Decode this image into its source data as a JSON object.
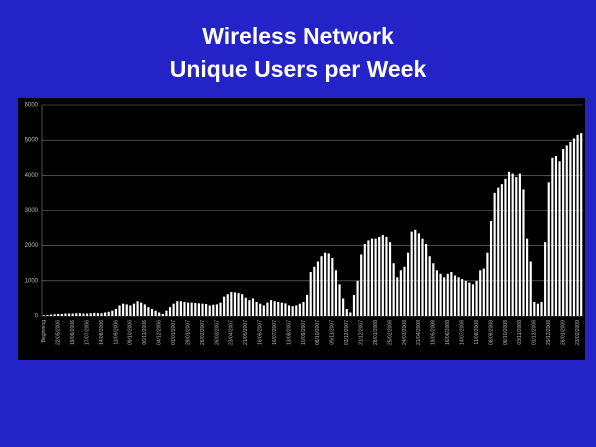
{
  "chart_data": {
    "type": "bar",
    "title": "Wireless Network",
    "subtitle": "Unique Users per Week",
    "color": "#ffffff",
    "ylim": [
      0,
      6000
    ],
    "yticks": [
      0,
      1000,
      2000,
      3000,
      4000,
      5000,
      6000
    ],
    "grid": true,
    "categories": [
      "Beginning",
      null,
      null,
      null,
      "22/05/2006",
      null,
      null,
      null,
      "19/06/2006",
      null,
      null,
      null,
      "17/07/2006",
      null,
      null,
      null,
      "14/08/2006",
      null,
      null,
      null,
      "11/09/2006",
      null,
      null,
      null,
      "09/10/2006",
      null,
      null,
      null,
      "06/11/2006",
      null,
      null,
      null,
      "04/12/2006",
      null,
      null,
      null,
      "01/01/2007",
      null,
      null,
      null,
      "29/01/2007",
      null,
      null,
      null,
      "26/02/2007",
      null,
      null,
      null,
      "26/03/2007",
      null,
      null,
      null,
      "23/04/2007",
      null,
      null,
      null,
      "21/05/2007",
      null,
      null,
      null,
      "18/06/2007",
      null,
      null,
      null,
      "16/07/2007",
      null,
      null,
      null,
      "13/08/2007",
      null,
      null,
      null,
      "10/09/2007",
      null,
      null,
      null,
      "08/10/2007",
      null,
      null,
      null,
      "05/11/2007",
      null,
      null,
      null,
      "03/12/2007",
      null,
      null,
      null,
      "31/12/2007",
      null,
      null,
      null,
      "28/01/2008",
      null,
      null,
      null,
      "25/02/2008",
      null,
      null,
      null,
      "24/03/2008",
      null,
      null,
      null,
      "21/04/2008",
      null,
      null,
      null,
      "19/05/2008",
      null,
      null,
      null,
      "16/06/2008",
      null,
      null,
      null,
      "14/07/2008",
      null,
      null,
      null,
      "11/08/2008",
      null,
      null,
      null,
      "08/09/2008",
      null,
      null,
      null,
      "06/10/2008",
      null,
      null,
      null,
      "03/11/2008",
      null,
      null,
      null,
      "01/12/2008",
      null,
      null,
      null,
      "29/12/2008",
      null,
      null,
      null,
      "26/01/2009",
      null,
      null,
      null,
      "23/02/2009",
      null
    ],
    "values": [
      20,
      30,
      40,
      50,
      60,
      60,
      70,
      70,
      70,
      80,
      80,
      70,
      70,
      80,
      90,
      80,
      80,
      100,
      120,
      150,
      200,
      300,
      350,
      330,
      300,
      350,
      420,
      380,
      330,
      250,
      200,
      150,
      100,
      60,
      150,
      250,
      350,
      420,
      420,
      400,
      380,
      380,
      370,
      360,
      350,
      340,
      300,
      320,
      330,
      380,
      550,
      620,
      680,
      670,
      650,
      620,
      520,
      450,
      500,
      400,
      350,
      300,
      380,
      450,
      420,
      400,
      380,
      360,
      300,
      280,
      300,
      350,
      400,
      600,
      1250,
      1400,
      1550,
      1700,
      1800,
      1780,
      1650,
      1300,
      900,
      500,
      200,
      100,
      600,
      1000,
      1750,
      2050,
      2150,
      2200,
      2200,
      2250,
      2300,
      2250,
      2100,
      1500,
      1100,
      1300,
      1400,
      1800,
      2400,
      2450,
      2350,
      2200,
      2050,
      1700,
      1500,
      1300,
      1200,
      1100,
      1200,
      1250,
      1150,
      1100,
      1050,
      1000,
      950,
      900,
      1000,
      1300,
      1350,
      1800,
      2700,
      3500,
      3650,
      3750,
      3900,
      4100,
      4050,
      3950,
      4050,
      3600,
      2200,
      1550,
      400,
      350,
      400,
      2100,
      3800,
      4500,
      4550,
      4400,
      4750,
      4850,
      4950,
      5050,
      5150,
      5200
    ]
  }
}
